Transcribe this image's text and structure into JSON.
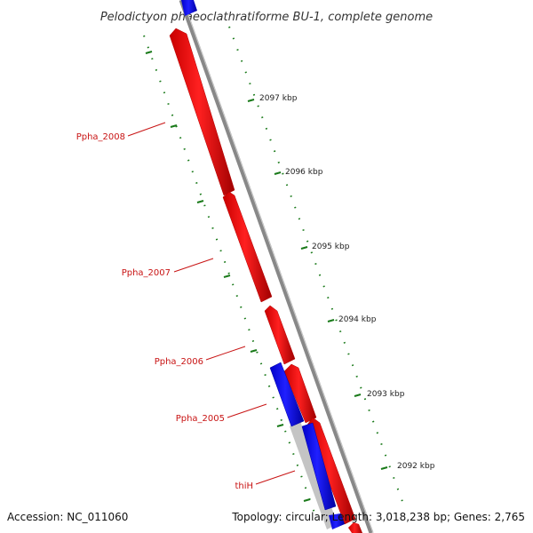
{
  "title": "Pelodictyon phaeoclathratiforme BU-1, complete genome",
  "accession": "Accession: NC_011060",
  "summary": "Topology: circular; Length: 3,018,238 bp; Genes: 2,765",
  "ticks": [
    {
      "label": "2097 kbp"
    },
    {
      "label": "2096 kbp"
    },
    {
      "label": "2095 kbp"
    },
    {
      "label": "2094 kbp"
    },
    {
      "label": "2093 kbp"
    },
    {
      "label": "2092 kbp"
    }
  ],
  "genes": [
    {
      "label": "Ppha_2008",
      "strand": "forward"
    },
    {
      "label": "Ppha_2007",
      "strand": "forward"
    },
    {
      "label": "Ppha_2006",
      "strand": "forward"
    },
    {
      "label": "Ppha_2005",
      "strand": "forward"
    },
    {
      "label": "thiH",
      "strand": "reverse"
    }
  ],
  "colors": {
    "forward_gene": "#ff0000",
    "reverse_gene": "#0000ff",
    "backbone": "#888888",
    "ruler": "#1a7a1a",
    "gene_label": "#c81414"
  }
}
